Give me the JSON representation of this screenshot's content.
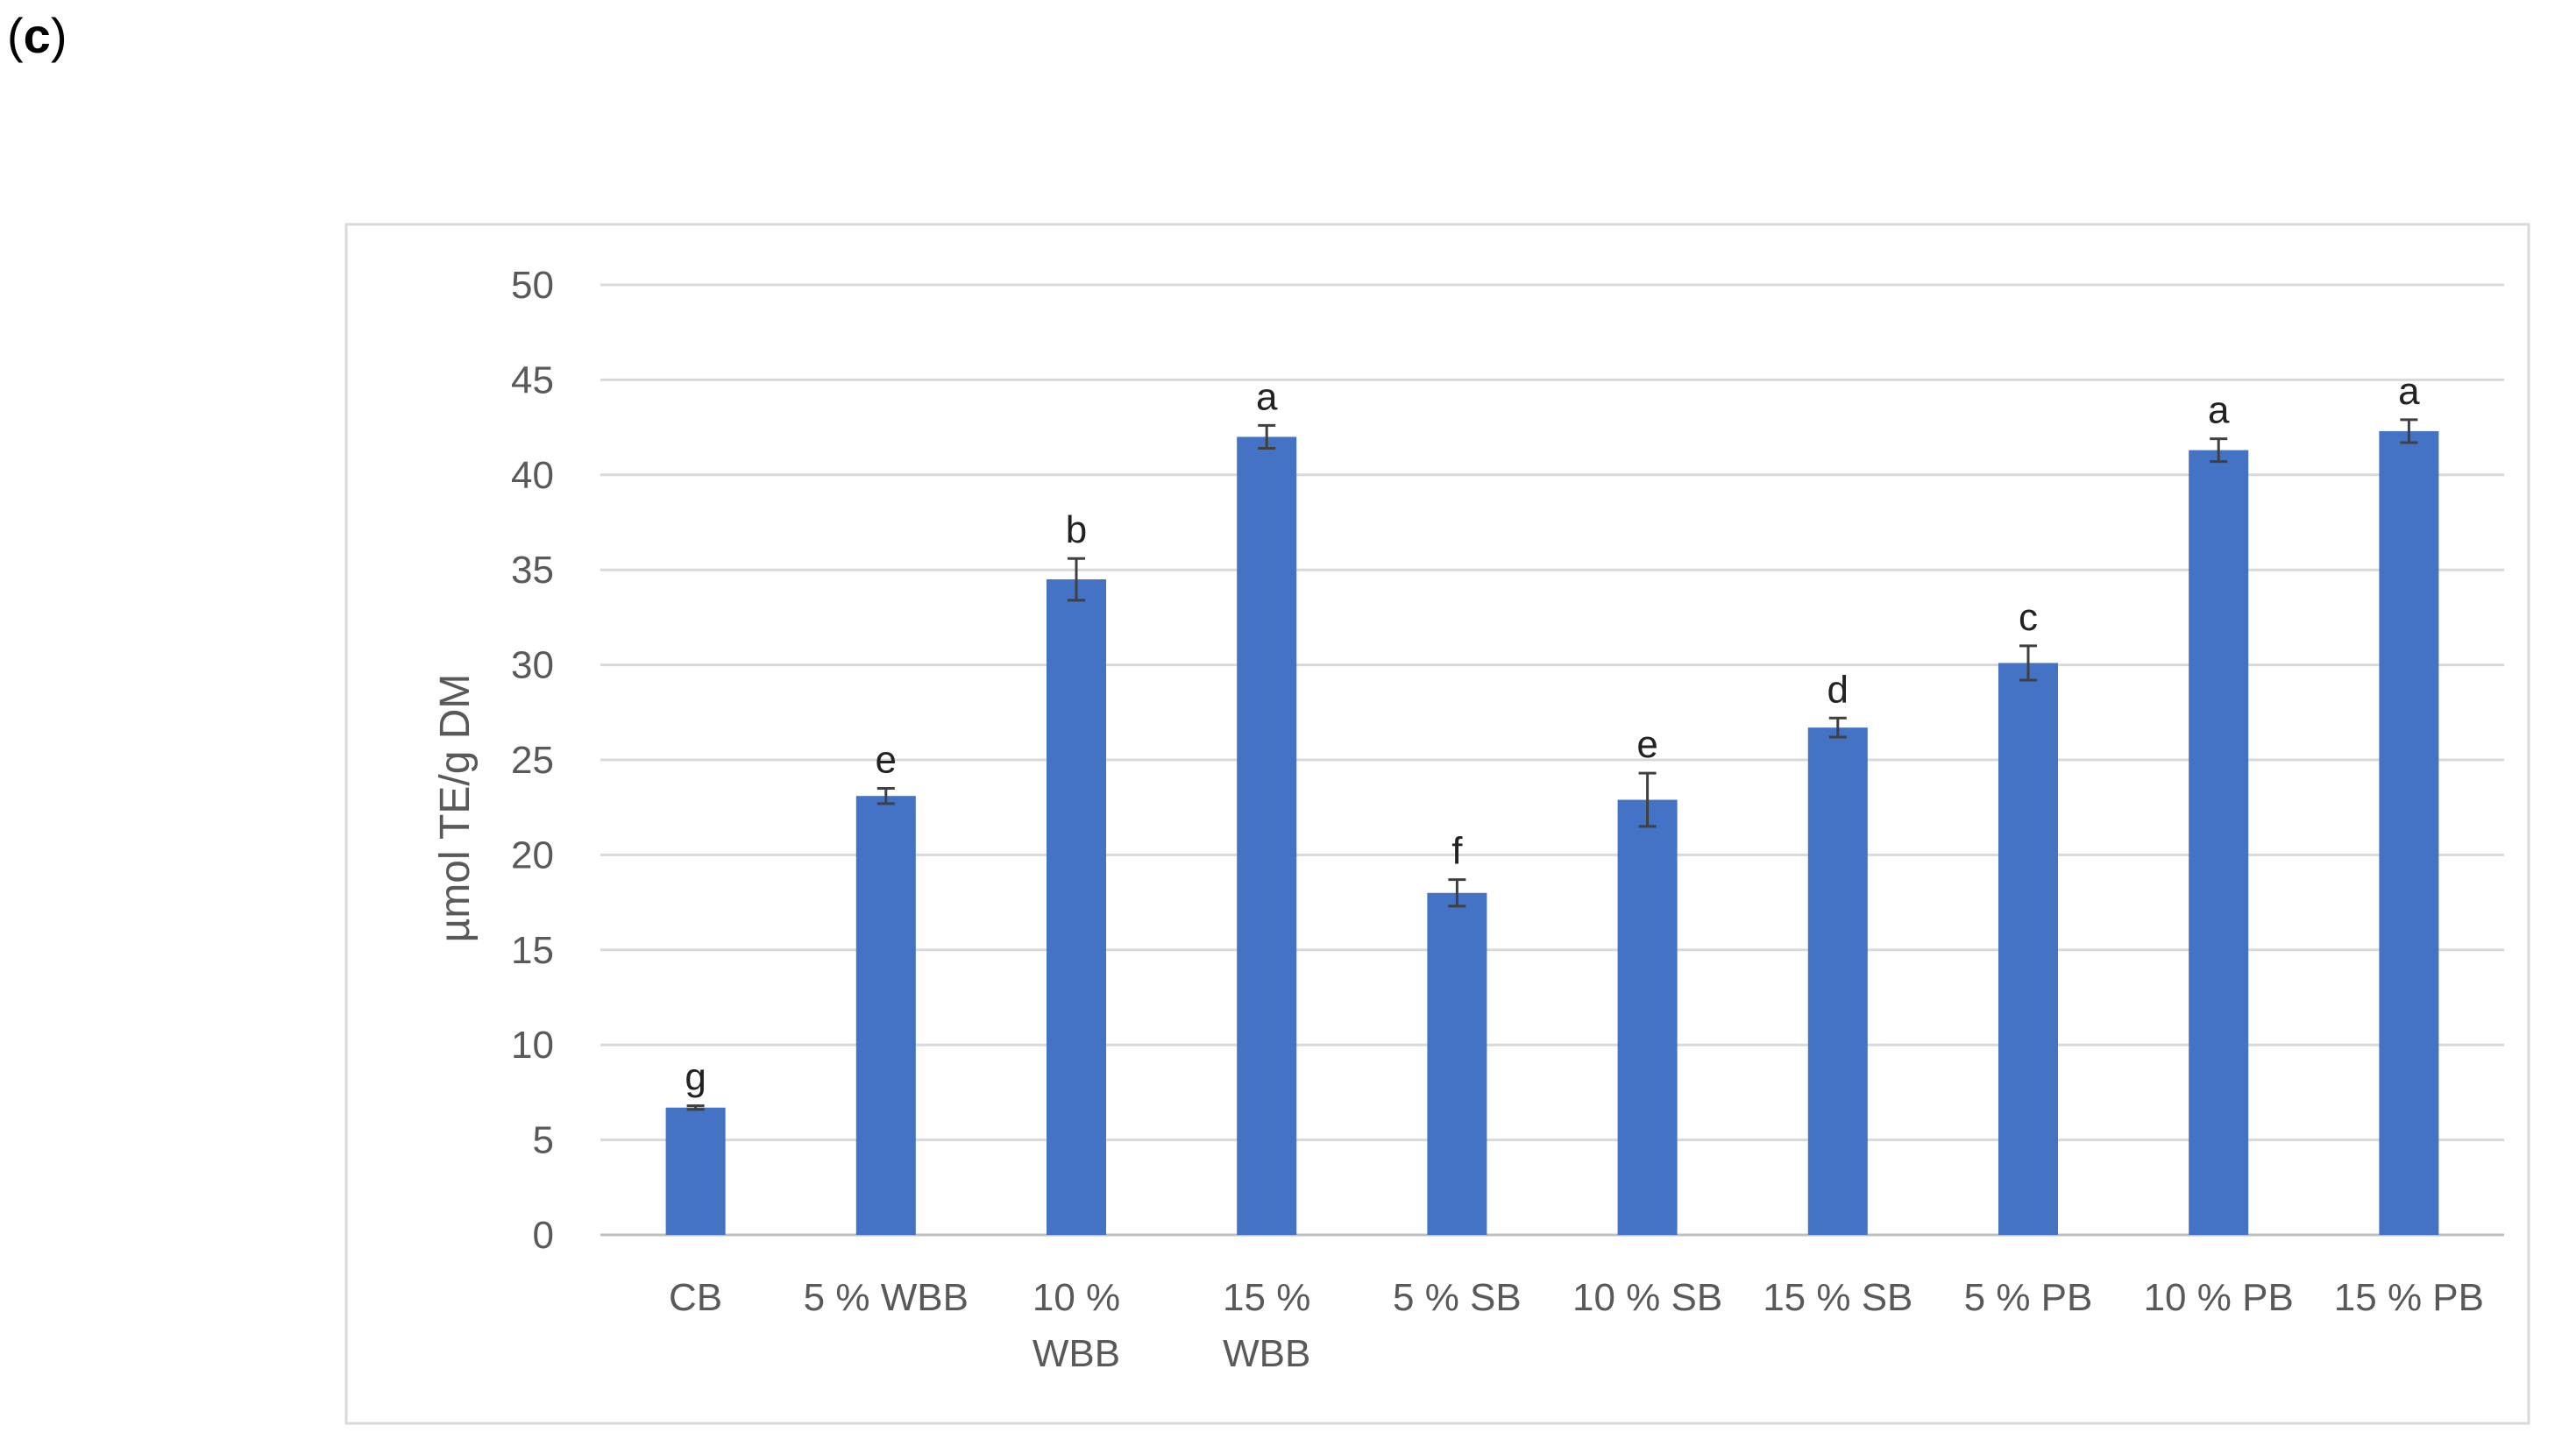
{
  "panel_label": {
    "open": "(",
    "letter": "c",
    "close": ")"
  },
  "chart_data": {
    "type": "bar",
    "title": "",
    "xlabel": "",
    "ylabel": "µmol TE/g DM",
    "ylim": [
      0,
      50
    ],
    "yticks": [
      0,
      5,
      10,
      15,
      20,
      25,
      30,
      35,
      40,
      45,
      50
    ],
    "grid": true,
    "categories": [
      "CB",
      "5 % WBB",
      "10 % WBB",
      "15 % WBB",
      "5 % SB",
      "10 % SB",
      "15 % SB",
      "5 % PB",
      "10 % PB",
      "15 % PB"
    ],
    "category_lines": [
      [
        "CB"
      ],
      [
        "5 % WBB"
      ],
      [
        "10 %",
        "WBB"
      ],
      [
        "15 %",
        "WBB"
      ],
      [
        "5 % SB"
      ],
      [
        "10 % SB"
      ],
      [
        "15 % SB"
      ],
      [
        "5 % PB"
      ],
      [
        "10 % PB"
      ],
      [
        "15 % PB"
      ]
    ],
    "values": [
      6.7,
      23.1,
      34.5,
      42.0,
      18.0,
      22.9,
      26.7,
      30.1,
      41.3,
      42.3
    ],
    "errors": [
      0.1,
      0.4,
      1.1,
      0.6,
      0.7,
      1.4,
      0.5,
      0.9,
      0.6,
      0.6
    ],
    "significance": [
      "g",
      "e",
      "b",
      "a",
      "f",
      "e",
      "d",
      "c",
      "a",
      "a"
    ],
    "colors": {
      "bar": "#4472C4",
      "error": "#404040",
      "grid": "#D9D9D9",
      "axis": "#BFBFBF",
      "frame": "#D9D9D9"
    }
  }
}
